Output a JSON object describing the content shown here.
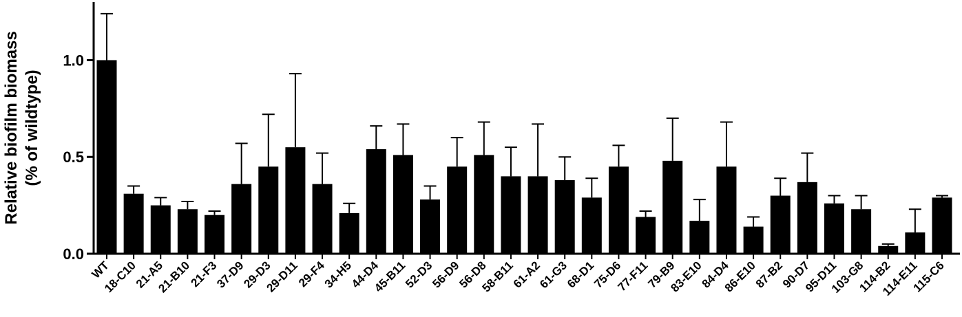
{
  "chart_data": {
    "type": "bar",
    "ylabel": [
      "Relative biofilm biomass",
      "(% of wildtype)"
    ],
    "categories": [
      "WT",
      "18-C10",
      "21-A5",
      "21-B10",
      "21-F3",
      "37-D9",
      "29-D3",
      "29-D11",
      "29-F4",
      "34-H5",
      "44-D4",
      "45-B11",
      "52-D3",
      "56-D9",
      "56-D8",
      "58-B11",
      "61-A2",
      "61-G3",
      "68-D1",
      "75-D6",
      "77-F11",
      "79-B9",
      "83-E10",
      "84-D4",
      "86-E10",
      "87-B2",
      "90-D7",
      "95-D11",
      "103-G8",
      "114-B2",
      "114-E11",
      "115-C6"
    ],
    "values": [
      1.0,
      0.31,
      0.25,
      0.23,
      0.2,
      0.36,
      0.45,
      0.55,
      0.36,
      0.21,
      0.54,
      0.51,
      0.28,
      0.45,
      0.51,
      0.4,
      0.4,
      0.38,
      0.29,
      0.45,
      0.19,
      0.48,
      0.17,
      0.45,
      0.14,
      0.3,
      0.37,
      0.26,
      0.23,
      0.04,
      0.11,
      0.29
    ],
    "errors": [
      0.24,
      0.04,
      0.04,
      0.04,
      0.02,
      0.21,
      0.27,
      0.38,
      0.16,
      0.05,
      0.12,
      0.16,
      0.07,
      0.15,
      0.17,
      0.15,
      0.27,
      0.12,
      0.1,
      0.11,
      0.03,
      0.22,
      0.11,
      0.23,
      0.05,
      0.09,
      0.15,
      0.04,
      0.07,
      0.01,
      0.12,
      0.01
    ],
    "color": "#000000",
    "ylim": [
      0,
      1.3
    ],
    "yticks": [
      {
        "value": 0,
        "label": "0.0"
      },
      {
        "value": 0.5,
        "label": "0.5"
      },
      {
        "value": 1.0,
        "label": "1.0"
      }
    ]
  }
}
